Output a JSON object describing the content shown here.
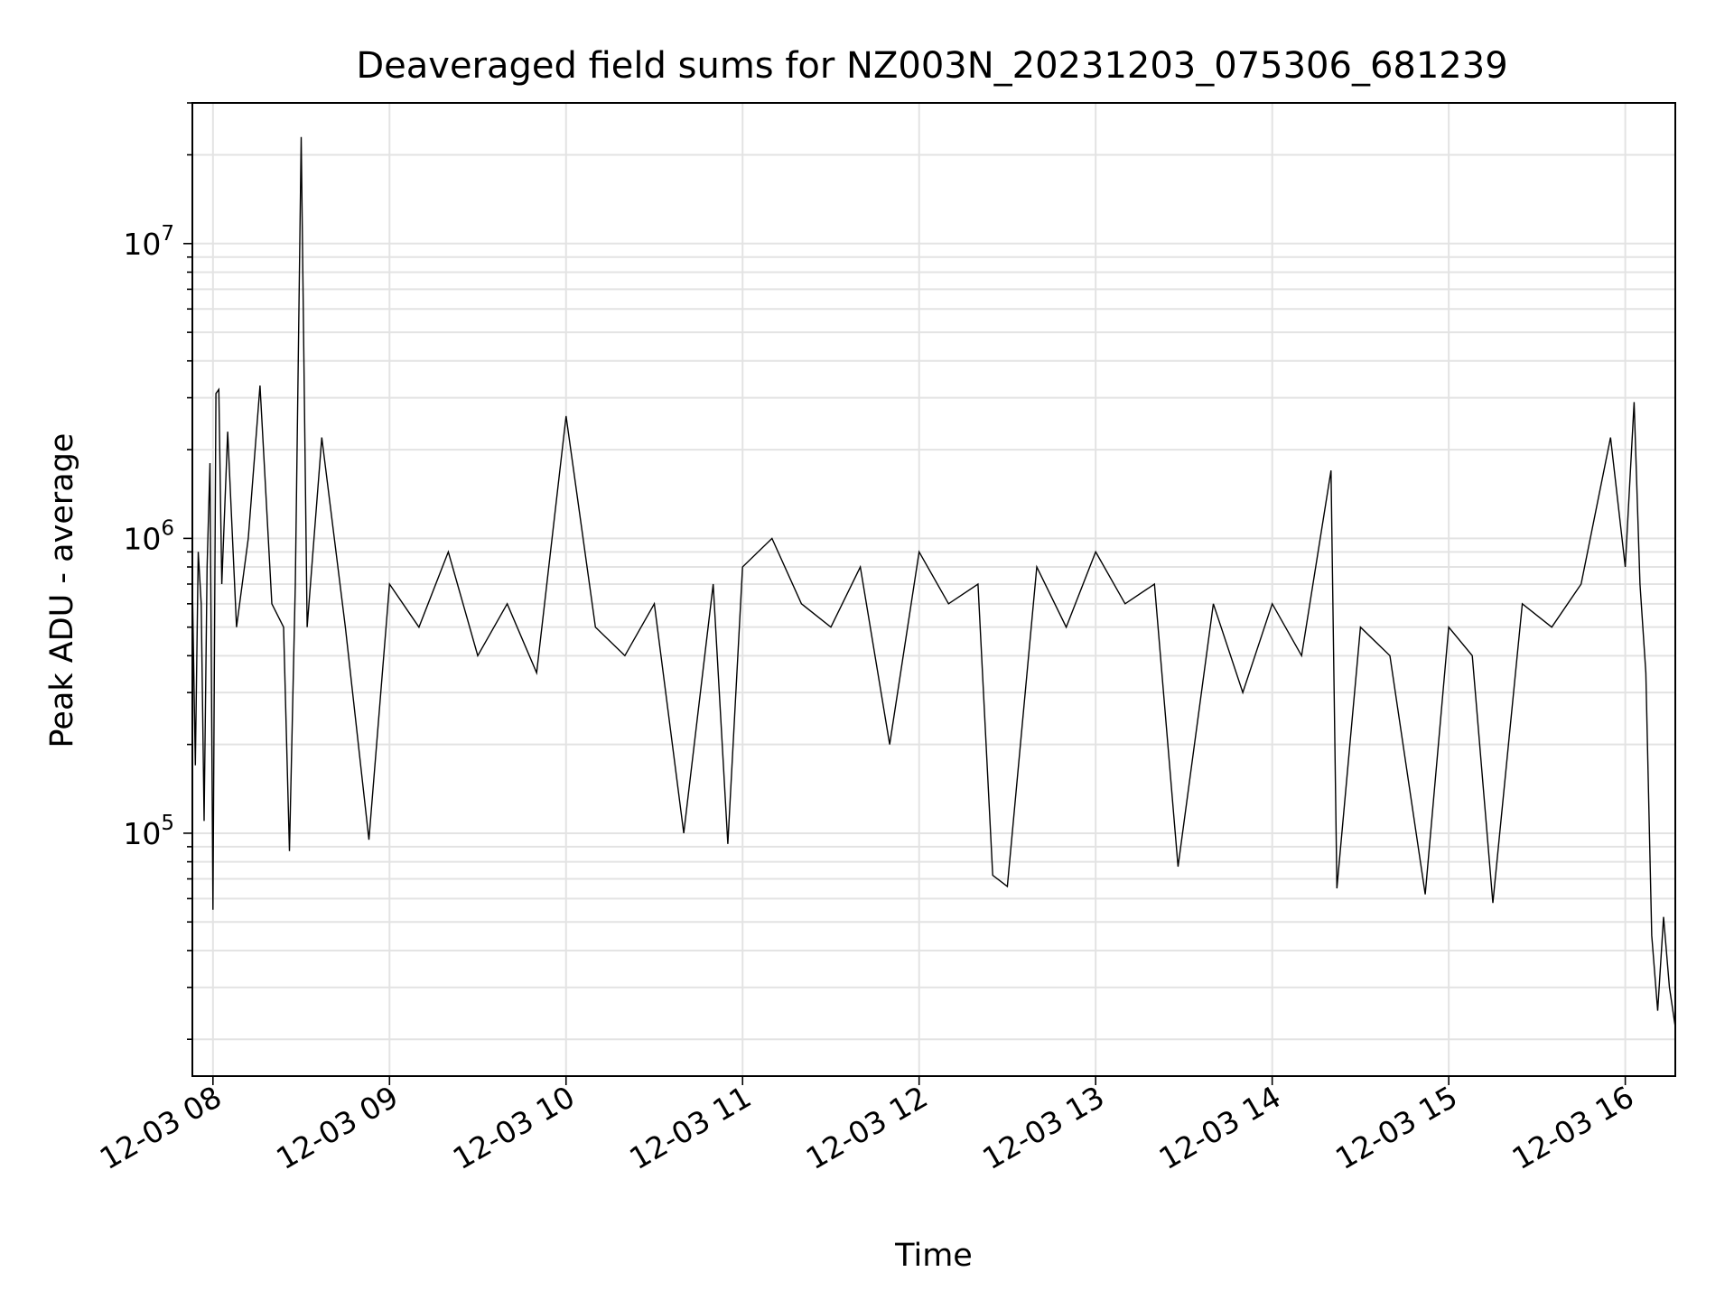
{
  "chart_data": {
    "type": "line",
    "title": "Deaveraged field sums for NZ003N_20231203_075306_681239",
    "xlabel": "Time",
    "ylabel": "Peak ADU - average",
    "yscale": "log",
    "ylim": [
      15000,
      30000000
    ],
    "xlim": [
      "2023-12-03 07:53",
      "2023-12-03 16:17"
    ],
    "grid": true,
    "x_ticks": [
      {
        "value": "2023-12-03 08:00",
        "label": "12-03 08"
      },
      {
        "value": "2023-12-03 09:00",
        "label": "12-03 09"
      },
      {
        "value": "2023-12-03 10:00",
        "label": "12-03 10"
      },
      {
        "value": "2023-12-03 11:00",
        "label": "12-03 11"
      },
      {
        "value": "2023-12-03 12:00",
        "label": "12-03 12"
      },
      {
        "value": "2023-12-03 13:00",
        "label": "12-03 13"
      },
      {
        "value": "2023-12-03 14:00",
        "label": "12-03 14"
      },
      {
        "value": "2023-12-03 15:00",
        "label": "12-03 15"
      },
      {
        "value": "2023-12-03 16:00",
        "label": "12-03 16"
      }
    ],
    "y_ticks": [
      {
        "value": 100000,
        "base": "10",
        "exp": "5"
      },
      {
        "value": 1000000,
        "base": "10",
        "exp": "6"
      },
      {
        "value": 10000000,
        "base": "10",
        "exp": "7"
      }
    ],
    "series": [
      {
        "color": "#000000",
        "points": [
          [
            "2023-12-03 07:53",
            700000
          ],
          [
            "2023-12-03 07:54",
            170000
          ],
          [
            "2023-12-03 07:55",
            900000
          ],
          [
            "2023-12-03 07:56",
            600000
          ],
          [
            "2023-12-03 07:57",
            110000
          ],
          [
            "2023-12-03 07:58",
            800000
          ],
          [
            "2023-12-03 07:59",
            1800000
          ],
          [
            "2023-12-03 08:00",
            55000
          ],
          [
            "2023-12-03 08:01",
            3100000
          ],
          [
            "2023-12-03 08:02",
            3200000
          ],
          [
            "2023-12-03 08:03",
            700000
          ],
          [
            "2023-12-03 08:05",
            2300000
          ],
          [
            "2023-12-03 08:08",
            500000
          ],
          [
            "2023-12-03 08:12",
            1000000
          ],
          [
            "2023-12-03 08:16",
            3300000
          ],
          [
            "2023-12-03 08:20",
            600000
          ],
          [
            "2023-12-03 08:24",
            500000
          ],
          [
            "2023-12-03 08:26",
            87000
          ],
          [
            "2023-12-03 08:28",
            700000
          ],
          [
            "2023-12-03 08:30",
            23000000
          ],
          [
            "2023-12-03 08:32",
            500000
          ],
          [
            "2023-12-03 08:37",
            2200000
          ],
          [
            "2023-12-03 08:45",
            500000
          ],
          [
            "2023-12-03 08:53",
            95000
          ],
          [
            "2023-12-03 09:00",
            700000
          ],
          [
            "2023-12-03 09:10",
            500000
          ],
          [
            "2023-12-03 09:20",
            900000
          ],
          [
            "2023-12-03 09:30",
            400000
          ],
          [
            "2023-12-03 09:40",
            600000
          ],
          [
            "2023-12-03 09:50",
            350000
          ],
          [
            "2023-12-03 10:00",
            2600000
          ],
          [
            "2023-12-03 10:10",
            500000
          ],
          [
            "2023-12-03 10:20",
            400000
          ],
          [
            "2023-12-03 10:30",
            600000
          ],
          [
            "2023-12-03 10:40",
            100000
          ],
          [
            "2023-12-03 10:50",
            700000
          ],
          [
            "2023-12-03 10:55",
            92000
          ],
          [
            "2023-12-03 11:00",
            800000
          ],
          [
            "2023-12-03 11:10",
            1000000
          ],
          [
            "2023-12-03 11:20",
            600000
          ],
          [
            "2023-12-03 11:30",
            500000
          ],
          [
            "2023-12-03 11:40",
            800000
          ],
          [
            "2023-12-03 11:50",
            200000
          ],
          [
            "2023-12-03 12:00",
            900000
          ],
          [
            "2023-12-03 12:10",
            600000
          ],
          [
            "2023-12-03 12:20",
            700000
          ],
          [
            "2023-12-03 12:25",
            72000
          ],
          [
            "2023-12-03 12:30",
            66000
          ],
          [
            "2023-12-03 12:40",
            800000
          ],
          [
            "2023-12-03 12:50",
            500000
          ],
          [
            "2023-12-03 13:00",
            900000
          ],
          [
            "2023-12-03 13:10",
            600000
          ],
          [
            "2023-12-03 13:20",
            700000
          ],
          [
            "2023-12-03 13:28",
            77000
          ],
          [
            "2023-12-03 13:40",
            600000
          ],
          [
            "2023-12-03 13:50",
            300000
          ],
          [
            "2023-12-03 14:00",
            600000
          ],
          [
            "2023-12-03 14:10",
            400000
          ],
          [
            "2023-12-03 14:20",
            1700000
          ],
          [
            "2023-12-03 14:22",
            65000
          ],
          [
            "2023-12-03 14:30",
            500000
          ],
          [
            "2023-12-03 14:40",
            400000
          ],
          [
            "2023-12-03 14:52",
            62000
          ],
          [
            "2023-12-03 15:00",
            500000
          ],
          [
            "2023-12-03 15:08",
            400000
          ],
          [
            "2023-12-03 15:15",
            58000
          ],
          [
            "2023-12-03 15:25",
            600000
          ],
          [
            "2023-12-03 15:35",
            500000
          ],
          [
            "2023-12-03 15:45",
            700000
          ],
          [
            "2023-12-03 15:55",
            2200000
          ],
          [
            "2023-12-03 16:00",
            800000
          ],
          [
            "2023-12-03 16:03",
            2900000
          ],
          [
            "2023-12-03 16:05",
            700000
          ],
          [
            "2023-12-03 16:07",
            350000
          ],
          [
            "2023-12-03 16:09",
            45000
          ],
          [
            "2023-12-03 16:11",
            25000
          ],
          [
            "2023-12-03 16:13",
            52000
          ],
          [
            "2023-12-03 16:15",
            30000
          ],
          [
            "2023-12-03 16:17",
            22000
          ]
        ]
      }
    ]
  }
}
